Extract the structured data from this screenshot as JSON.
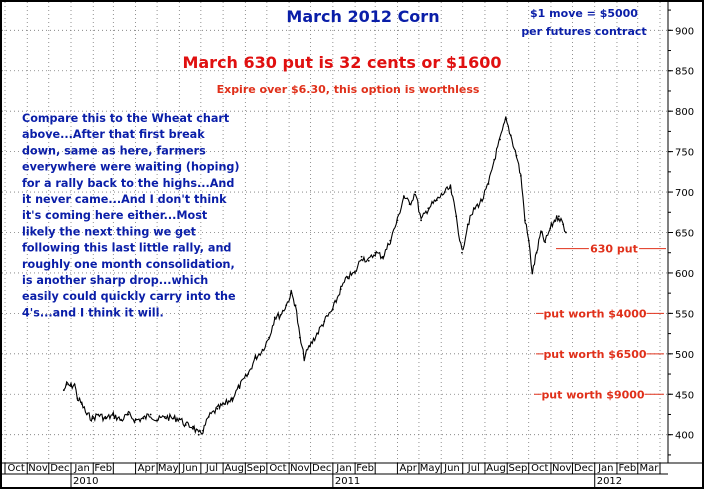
{
  "chart_data": {
    "type": "line",
    "title": "March 2012 Corn",
    "note": [
      "$1 move = $5000",
      "per futures contract"
    ],
    "headline": "March 630 put is 32 cents or $1600",
    "subheadline": "Expire over $6.30, this option is worthless",
    "commentary": [
      "Compare this to the Wheat chart",
      "above...After that first break",
      "down, same as here, farmers",
      "everywhere were waiting (hoping)",
      "for a rally back to the highs...And",
      "it never came...And I don't think",
      "it's coming here either...Most",
      "likely the next thing we get",
      "following this last little rally, and",
      "roughly one month consolidation,",
      "is another sharp drop...which",
      "easily could quickly carry into the",
      "4's...and I think it will."
    ],
    "ylim": [
      365,
      935
    ],
    "y_ticks": [
      "400",
      "450",
      "500",
      "550",
      "600",
      "650",
      "700",
      "750",
      "800",
      "850",
      "900"
    ],
    "x_ticks": [
      "Oct",
      "Nov",
      "Dec",
      "Jan",
      "Feb",
      "Apr",
      "May",
      "Jun",
      "Jul",
      "Aug",
      "Sep",
      "Oct",
      "Nov",
      "Dec",
      "Jan",
      "Feb",
      "Apr",
      "May",
      "Jun",
      "Jul",
      "Aug",
      "Sep",
      "Oct",
      "Nov",
      "Dec",
      "Jan",
      "Feb",
      "Mar"
    ],
    "year_labels": [
      "2010",
      "2011",
      "2012"
    ],
    "levels": [
      {
        "label": "630 put",
        "value": 630
      },
      {
        "label": "put worth $4000",
        "value": 550
      },
      {
        "label": "put worth $6500",
        "value": 500
      },
      {
        "label": "put worth $9000",
        "value": 450
      }
    ],
    "series": [
      {
        "values": [
          [
            "2009-12-22",
            455
          ],
          [
            "2009-12-26",
            462
          ],
          [
            "2010-01-01",
            460
          ],
          [
            "2010-01-06",
            462
          ],
          [
            "2010-01-10",
            445
          ],
          [
            "2010-01-16",
            438
          ],
          [
            "2010-01-23",
            425
          ],
          [
            "2010-01-31",
            420
          ],
          [
            "2010-02-08",
            425
          ],
          [
            "2010-02-18",
            420
          ],
          [
            "2010-03-01",
            424
          ],
          [
            "2010-03-12",
            418
          ],
          [
            "2010-03-22",
            425
          ],
          [
            "2010-04-01",
            418
          ],
          [
            "2010-04-12",
            420
          ],
          [
            "2010-04-22",
            425
          ],
          [
            "2010-05-01",
            418
          ],
          [
            "2010-05-12",
            422
          ],
          [
            "2010-05-24",
            420
          ],
          [
            "2010-06-01",
            420
          ],
          [
            "2010-06-10",
            412
          ],
          [
            "2010-06-20",
            410
          ],
          [
            "2010-06-28",
            400
          ],
          [
            "2010-07-04",
            405
          ],
          [
            "2010-07-12",
            422
          ],
          [
            "2010-07-24",
            432
          ],
          [
            "2010-08-04",
            438
          ],
          [
            "2010-08-14",
            445
          ],
          [
            "2010-08-24",
            460
          ],
          [
            "2010-09-05",
            475
          ],
          [
            "2010-09-15",
            495
          ],
          [
            "2010-09-25",
            505
          ],
          [
            "2010-10-04",
            520
          ],
          [
            "2010-10-12",
            545
          ],
          [
            "2010-10-20",
            548
          ],
          [
            "2010-10-28",
            560
          ],
          [
            "2010-11-04",
            575
          ],
          [
            "2010-11-10",
            560
          ],
          [
            "2010-11-16",
            520
          ],
          [
            "2010-11-22",
            495
          ],
          [
            "2010-11-30",
            510
          ],
          [
            "2010-12-10",
            525
          ],
          [
            "2010-12-20",
            540
          ],
          [
            "2011-01-01",
            555
          ],
          [
            "2011-01-12",
            580
          ],
          [
            "2011-01-22",
            595
          ],
          [
            "2011-02-01",
            600
          ],
          [
            "2011-02-10",
            620
          ],
          [
            "2011-02-20",
            615
          ],
          [
            "2011-03-01",
            625
          ],
          [
            "2011-03-12",
            620
          ],
          [
            "2011-03-22",
            640
          ],
          [
            "2011-04-01",
            665
          ],
          [
            "2011-04-10",
            695
          ],
          [
            "2011-04-18",
            685
          ],
          [
            "2011-04-26",
            700
          ],
          [
            "2011-05-04",
            665
          ],
          [
            "2011-05-14",
            680
          ],
          [
            "2011-05-26",
            690
          ],
          [
            "2011-06-06",
            700
          ],
          [
            "2011-06-14",
            705
          ],
          [
            "2011-06-22",
            670
          ],
          [
            "2011-06-30",
            625
          ],
          [
            "2011-07-08",
            660
          ],
          [
            "2011-07-18",
            680
          ],
          [
            "2011-07-28",
            690
          ],
          [
            "2011-08-06",
            710
          ],
          [
            "2011-08-14",
            740
          ],
          [
            "2011-08-22",
            765
          ],
          [
            "2011-08-30",
            790
          ],
          [
            "2011-09-06",
            770
          ],
          [
            "2011-09-14",
            745
          ],
          [
            "2011-09-20",
            720
          ],
          [
            "2011-09-26",
            665
          ],
          [
            "2011-10-01",
            640
          ],
          [
            "2011-10-06",
            600
          ],
          [
            "2011-10-12",
            625
          ],
          [
            "2011-10-18",
            650
          ],
          [
            "2011-10-24",
            638
          ],
          [
            "2011-10-31",
            655
          ],
          [
            "2011-11-06",
            665
          ],
          [
            "2011-11-12",
            670
          ],
          [
            "2011-11-18",
            660
          ],
          [
            "2011-11-22",
            650
          ]
        ]
      }
    ]
  }
}
